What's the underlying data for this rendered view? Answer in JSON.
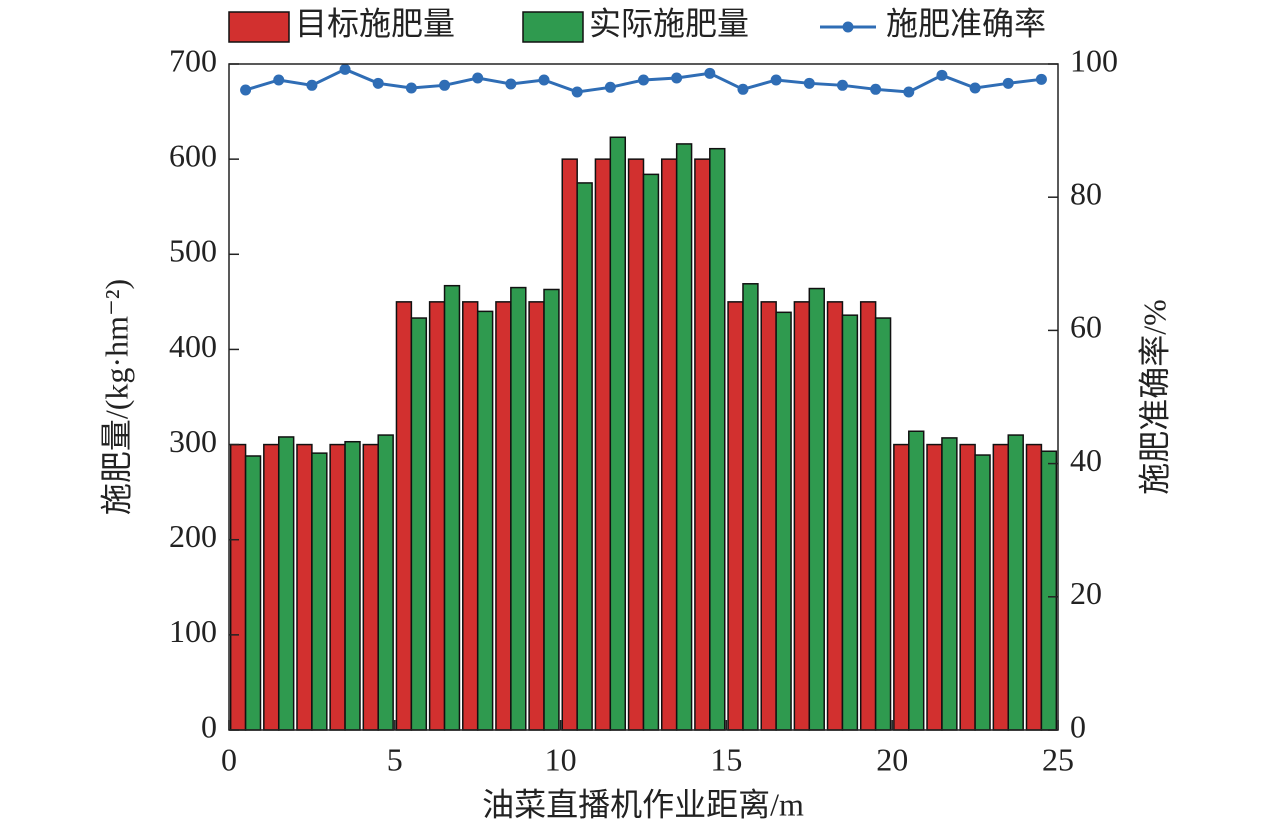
{
  "chart_data": {
    "type": "bar-line",
    "x_label": "油菜直播机作业距离/m",
    "y_label": "施肥量/(kg·hm⁻²)",
    "y2_label": "施肥准确率/%",
    "x": [
      0.5,
      1.5,
      2.5,
      3.5,
      4.5,
      5.5,
      6.5,
      7.5,
      8.5,
      9.5,
      10.5,
      11.5,
      12.5,
      13.5,
      14.5,
      15.5,
      16.5,
      17.5,
      18.5,
      19.5,
      20.5,
      21.5,
      22.5,
      23.5,
      24.5
    ],
    "series": [
      {
        "name": "目标施肥量",
        "type": "bar",
        "color": "#d2302f",
        "values": [
          300,
          300,
          300,
          300,
          300,
          450,
          450,
          450,
          450,
          450,
          600,
          600,
          600,
          600,
          600,
          450,
          450,
          450,
          450,
          450,
          300,
          300,
          300,
          300,
          300
        ]
      },
      {
        "name": "实际施肥量",
        "type": "bar",
        "color": "#2f9a4f",
        "values": [
          288,
          308,
          291,
          303,
          310,
          433,
          467,
          440,
          465,
          463,
          575,
          623,
          584,
          616,
          611,
          469,
          439,
          464,
          436,
          433,
          314,
          307,
          289,
          310,
          293
        ]
      },
      {
        "name": "施肥准确率",
        "type": "line",
        "axis": "y2",
        "color": "#2f6db5",
        "values": [
          96.1,
          97.6,
          96.8,
          99.2,
          97.1,
          96.4,
          96.8,
          97.9,
          97.0,
          97.6,
          95.8,
          96.5,
          97.6,
          97.9,
          98.6,
          96.2,
          97.6,
          97.1,
          96.8,
          96.2,
          95.8,
          98.3,
          96.4,
          97.1,
          97.7
        ]
      }
    ],
    "xlim": [
      0,
      25
    ],
    "xticks": [
      0,
      5,
      10,
      15,
      20,
      25
    ],
    "ylim": [
      0,
      700
    ],
    "yticks": [
      0,
      100,
      200,
      300,
      400,
      500,
      600,
      700
    ],
    "y2lim": [
      0,
      100
    ],
    "y2ticks": [
      0,
      20,
      40,
      60,
      80,
      100
    ],
    "grid": false,
    "legend": "top"
  }
}
